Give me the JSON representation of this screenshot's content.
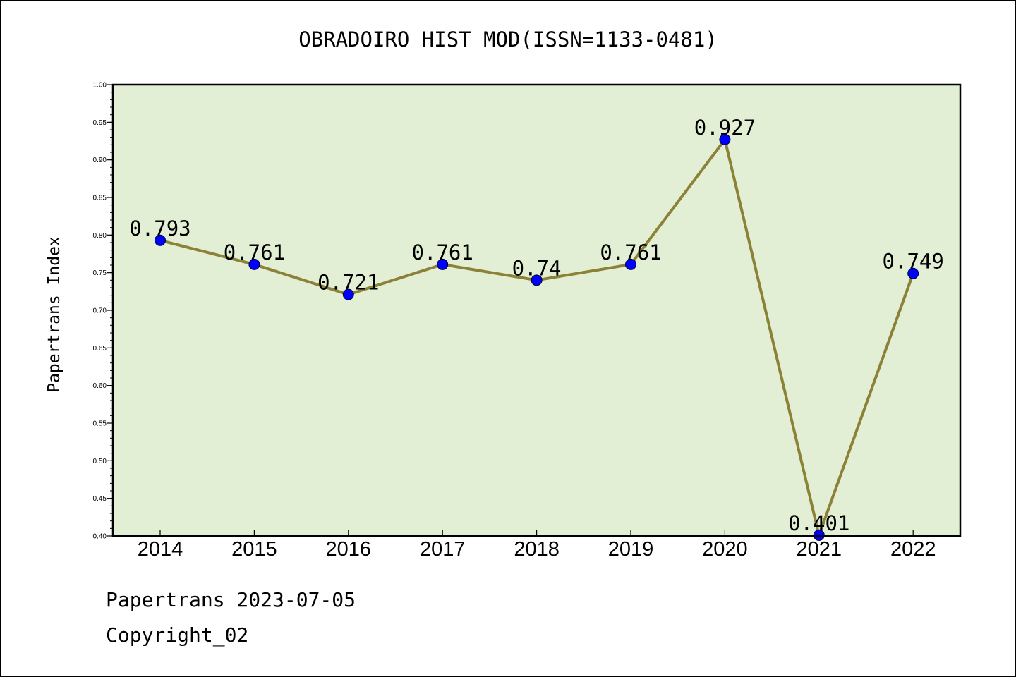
{
  "chart_data": {
    "type": "line",
    "title": "OBRADOIRO HIST MOD(ISSN=1133-0481)",
    "xlabel": "",
    "ylabel": "Papertrans Index",
    "categories": [
      "2014",
      "2015",
      "2016",
      "2017",
      "2018",
      "2019",
      "2020",
      "2021",
      "2022"
    ],
    "values": [
      0.793,
      0.761,
      0.721,
      0.761,
      0.74,
      0.761,
      0.927,
      0.401,
      0.749
    ],
    "data_labels": [
      "0.793",
      "0.761",
      "0.721",
      "0.761",
      "0.74",
      "0.761",
      "0.927",
      "0.401",
      "0.749"
    ],
    "ylim": [
      0.4,
      1.0
    ],
    "yticks": [
      "0.40",
      "0.45",
      "0.50",
      "0.55",
      "0.60",
      "0.65",
      "0.70",
      "0.75",
      "0.80",
      "0.85",
      "0.90",
      "0.95",
      "1.00"
    ],
    "grid": false,
    "colors": {
      "plot_background": "#e2efd4",
      "line": "#8b8238",
      "marker": "#0000ff"
    }
  },
  "footer": {
    "date_line": "Papertrans 2023-07-05",
    "copyright": "Copyright_02"
  }
}
